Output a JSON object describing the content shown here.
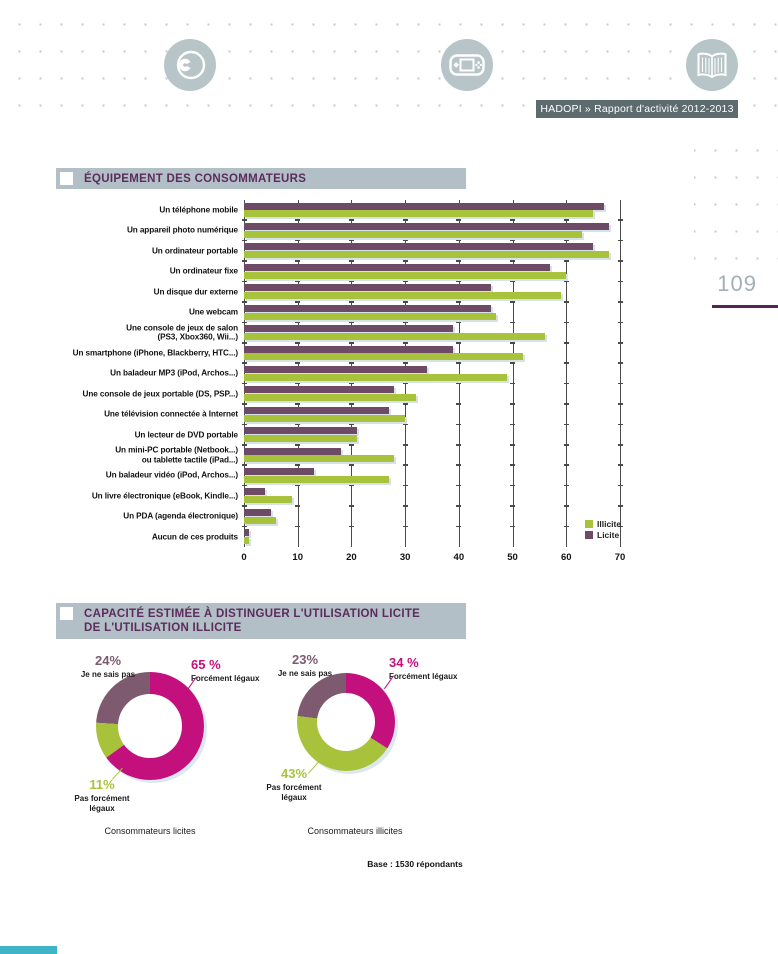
{
  "page": {
    "number": "109"
  },
  "header": {
    "banner_text": "HADOPI » Rapport d'activité 2012-2013",
    "icons": [
      "cd-icon",
      "handheld-console-icon",
      "open-book-icon"
    ]
  },
  "equipment_section": {
    "title": "ÉQUIPEMENT DES CONSOMMATEURS"
  },
  "capacity_section": {
    "title": "CAPACITÉ ESTIMÉE À DISTINGUER L'UTILISATION LICITE\nDE L'UTILISATION ILLICITE",
    "left_donut": {
      "caption": "Consommateurs licites",
      "labels": {
        "forcement": {
          "pct": "65 %",
          "text": "Forcément légaux"
        },
        "pas_forcement": {
          "pct": "11%",
          "text": "Pas forcément\nlégaux"
        },
        "ne_sais_pas": {
          "pct": "24%",
          "text": "Je ne sais pas"
        }
      }
    },
    "right_donut": {
      "caption": "Consommateurs illicites",
      "labels": {
        "forcement": {
          "pct": "34 %",
          "text": "Forcément légaux"
        },
        "pas_forcement": {
          "pct": "43%",
          "text": "Pas forcément\nlégaux"
        },
        "ne_sais_pas": {
          "pct": "23%",
          "text": "Je ne sais pas"
        }
      }
    },
    "base_note": "Base : 1530 répondants"
  },
  "colors": {
    "bar_licite": "#6d4a66",
    "bar_illicite": "#a9c23c",
    "magenta": "#c4107d",
    "donut_purple": "#7d5a70",
    "donut_green": "#a9c23c",
    "section_title": "#5c2b5e",
    "banner_bg": "#b3bfc6",
    "header_bg": "#5c6b6e",
    "page_rule": "#542551",
    "footer_teal": "#3fb4c6"
  },
  "chart_data": [
    {
      "type": "bar",
      "orientation": "horizontal",
      "title": "ÉQUIPEMENT DES CONSOMMATEURS",
      "categories": [
        "Un téléphone mobile",
        "Un appareil photo numérique",
        "Un ordinateur portable",
        "Un ordinateur fixe",
        "Un disque dur externe",
        "Une webcam",
        "Une console de jeux de salon\n(PS3, Xbox360, Wii...)",
        "Un smartphone (iPhone, Blackberry, HTC...)",
        "Un baladeur MP3 (iPod, Archos...)",
        "Une console de jeux portable (DS, PSP...)",
        "Une télévision connectée à Internet",
        "Un lecteur de DVD portable",
        "Un mini-PC portable (Netbook...)\nou tablette tactile (iPad...)",
        "Un baladeur vidéo (iPod, Archos...)",
        "Un livre électronique (eBook, Kindle...)",
        "Un PDA (agenda électronique)",
        "Aucun de ces produits"
      ],
      "series": [
        {
          "name": "Licite",
          "color": "#6d4a66",
          "values": [
            67,
            68,
            65,
            57,
            46,
            46,
            39,
            39,
            34,
            28,
            27,
            21,
            18,
            13,
            4,
            5,
            1
          ]
        },
        {
          "name": "Illicite",
          "color": "#a9c23c",
          "values": [
            65,
            63,
            68,
            60,
            59,
            47,
            56,
            52,
            49,
            32,
            30,
            21,
            28,
            27,
            9,
            6,
            1
          ]
        }
      ],
      "xlim": [
        0,
        70
      ],
      "xticks": [
        0,
        10,
        20,
        30,
        40,
        50,
        60,
        70
      ],
      "legend": [
        "Illicite",
        "Licite"
      ],
      "legend_position": "bottom-right",
      "grid": true
    },
    {
      "type": "pie",
      "title": "Consommateurs licites",
      "labels": [
        "Forcément légaux",
        "Pas forcément légaux",
        "Je ne sais pas"
      ],
      "values": [
        65,
        11,
        24
      ],
      "colors": [
        "#c4107d",
        "#a9c23c",
        "#7d5a70"
      ],
      "donut": true
    },
    {
      "type": "pie",
      "title": "Consommateurs illicites",
      "labels": [
        "Forcément légaux",
        "Pas forcément légaux",
        "Je ne sais pas"
      ],
      "values": [
        34,
        43,
        23
      ],
      "colors": [
        "#c4107d",
        "#a9c23c",
        "#7d5a70"
      ],
      "donut": true
    }
  ]
}
